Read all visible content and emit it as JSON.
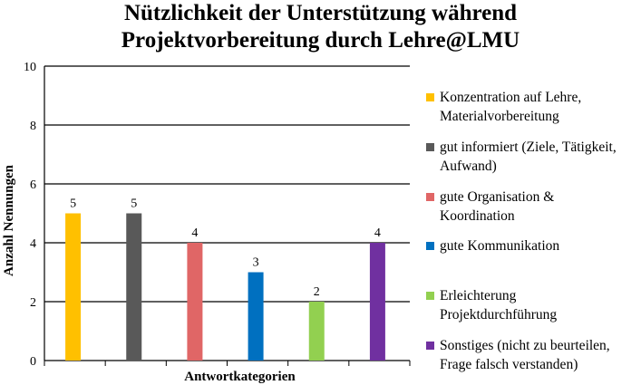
{
  "chart_data": {
    "type": "bar",
    "title": [
      "Nützlichkeit der Unterstützung während",
      "Projektvorbereitung durch Lehre@LMU"
    ],
    "xlabel": "Antwortkategorien",
    "ylabel": "Anzahl Nennungen",
    "ylim": [
      0,
      10
    ],
    "yticks": [
      0,
      2,
      4,
      6,
      8,
      10
    ],
    "grid": true,
    "legend_position": "right",
    "categories": [
      "Konzentration auf Lehre,\nMaterialvorbereitung",
      "gut informiert (Ziele, Tätigkeit,\nAufwand)",
      "gute Organisation &\nKoordination",
      "gute Kommunikation",
      "Erleichterung\nProjektdurchführung",
      "Sonstiges (nicht zu beurteilen,\nFrage falsch verstanden)"
    ],
    "values": [
      5,
      5,
      4,
      3,
      2,
      4
    ],
    "colors": [
      "#FFC000",
      "#595959",
      "#E06666",
      "#0070C0",
      "#92D050",
      "#7030A0"
    ]
  }
}
